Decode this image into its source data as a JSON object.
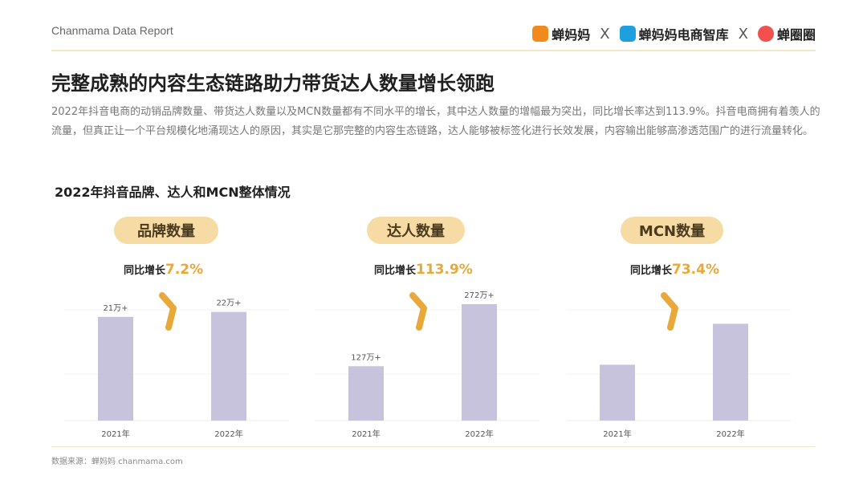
{
  "header": {
    "brand": "Chanmama Data Report",
    "logos": [
      "蝉妈妈",
      "蝉妈妈电商智库",
      "蝉圈圈"
    ],
    "separator": "X",
    "colors": {
      "accent": "#f7dba5",
      "accent_text": "#e9a93a",
      "bar": "#c8c3dc"
    }
  },
  "title": "完整成熟的内容生态链路助力带货达人数量增长领跑",
  "intro": "2022年抖音电商的动销品牌数量、带货达人数量以及MCN数量都有不同水平的增长，其中达人数量的增幅最为突出，同比增长率达到113.9%。抖音电商拥有着羡人的流量，但真正让一个平台规模化地涌现达人的原因，其实是它那完整的内容生态链路，达人能够被标签化进行长效发展，内容输出能够高渗透范围广的进行流量转化。",
  "chart_section_title": "2022年抖音品牌、达人和MCN整体情况",
  "growth_label": "同比增长",
  "footer": "数据来源：蝉妈妈 chanmama.com",
  "chart_data": [
    {
      "type": "bar",
      "title": "品牌数量",
      "categories": [
        "2021年",
        "2022年"
      ],
      "values": [
        21,
        22
      ],
      "value_labels": [
        "21万+",
        "22万+"
      ],
      "growth": "7.2%",
      "ylim": [
        0,
        26
      ]
    },
    {
      "type": "bar",
      "title": "达人数量",
      "categories": [
        "2021年",
        "2022年"
      ],
      "values": [
        127,
        272
      ],
      "value_labels": [
        "127万+",
        "272万+"
      ],
      "growth": "113.9%",
      "ylim": [
        0,
        300
      ]
    },
    {
      "type": "bar",
      "title": "MCN数量",
      "categories": [
        "2021年",
        "2022年"
      ],
      "values": [
        1,
        1.734
      ],
      "value_labels": [],
      "growth": "73.4%",
      "ylim": [
        0,
        2.3
      ]
    }
  ]
}
